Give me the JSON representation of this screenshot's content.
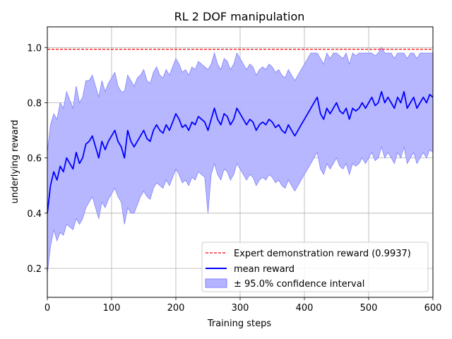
{
  "chart_data": {
    "type": "line",
    "title": "RL 2 DOF manipulation",
    "xlabel": "Training steps",
    "ylabel": "underlying reward",
    "xlim": [
      0,
      600
    ],
    "ylim": [
      0.095,
      1.075
    ],
    "xticks": [
      0,
      100,
      200,
      300,
      400,
      500,
      600
    ],
    "yticks": [
      0.2,
      0.4,
      0.6,
      0.8,
      1.0
    ],
    "ytick_labels": [
      "0.2",
      "0.4",
      "0.6",
      "0.8",
      "1.0"
    ],
    "grid": true,
    "legend_position": "lower-right",
    "colors": {
      "expert": "#ff0000",
      "mean": "#0000ff",
      "band_fill": "#b3b3ff",
      "band_edge": "#8080ff"
    },
    "expert_line": {
      "name": "Expert demonstration reward (0.9937)",
      "value": 0.9937
    },
    "series": [
      {
        "name": "mean reward",
        "x": [
          0,
          5,
          10,
          15,
          20,
          25,
          30,
          35,
          40,
          45,
          50,
          55,
          60,
          65,
          70,
          75,
          80,
          85,
          90,
          95,
          100,
          105,
          110,
          115,
          120,
          125,
          130,
          135,
          140,
          145,
          150,
          155,
          160,
          165,
          170,
          175,
          180,
          185,
          190,
          195,
          200,
          205,
          210,
          215,
          220,
          225,
          230,
          235,
          240,
          245,
          250,
          255,
          260,
          265,
          270,
          275,
          280,
          285,
          290,
          295,
          300,
          305,
          310,
          315,
          320,
          325,
          330,
          335,
          340,
          345,
          350,
          355,
          360,
          365,
          370,
          375,
          380,
          385,
          390,
          395,
          400,
          405,
          410,
          415,
          420,
          425,
          430,
          435,
          440,
          445,
          450,
          455,
          460,
          465,
          470,
          475,
          480,
          485,
          490,
          495,
          500,
          505,
          510,
          515,
          520,
          525,
          530,
          535,
          540,
          545,
          550,
          555,
          560,
          565,
          570,
          575,
          580,
          585,
          590,
          595,
          600
        ],
        "values": [
          0.4,
          0.5,
          0.55,
          0.52,
          0.57,
          0.55,
          0.6,
          0.58,
          0.56,
          0.62,
          0.58,
          0.6,
          0.65,
          0.66,
          0.68,
          0.64,
          0.6,
          0.66,
          0.63,
          0.66,
          0.68,
          0.7,
          0.66,
          0.64,
          0.6,
          0.7,
          0.66,
          0.64,
          0.66,
          0.68,
          0.7,
          0.67,
          0.66,
          0.7,
          0.72,
          0.7,
          0.69,
          0.72,
          0.7,
          0.73,
          0.76,
          0.74,
          0.71,
          0.72,
          0.7,
          0.73,
          0.72,
          0.75,
          0.74,
          0.73,
          0.7,
          0.74,
          0.78,
          0.74,
          0.72,
          0.76,
          0.75,
          0.72,
          0.74,
          0.78,
          0.76,
          0.74,
          0.72,
          0.74,
          0.73,
          0.7,
          0.72,
          0.73,
          0.72,
          0.74,
          0.73,
          0.71,
          0.72,
          0.7,
          0.69,
          0.72,
          0.7,
          0.68,
          0.7,
          0.72,
          0.74,
          0.76,
          0.78,
          0.8,
          0.82,
          0.76,
          0.74,
          0.78,
          0.76,
          0.78,
          0.8,
          0.77,
          0.76,
          0.78,
          0.74,
          0.78,
          0.77,
          0.78,
          0.8,
          0.78,
          0.8,
          0.82,
          0.79,
          0.8,
          0.84,
          0.8,
          0.82,
          0.8,
          0.78,
          0.82,
          0.8,
          0.84,
          0.78,
          0.8,
          0.82,
          0.78,
          0.8,
          0.82,
          0.8,
          0.83,
          0.82
        ]
      },
      {
        "name": "± 95.0% confidence interval",
        "x": [
          0,
          5,
          10,
          15,
          20,
          25,
          30,
          35,
          40,
          45,
          50,
          55,
          60,
          65,
          70,
          75,
          80,
          85,
          90,
          95,
          100,
          105,
          110,
          115,
          120,
          125,
          130,
          135,
          140,
          145,
          150,
          155,
          160,
          165,
          170,
          175,
          180,
          185,
          190,
          195,
          200,
          205,
          210,
          215,
          220,
          225,
          230,
          235,
          240,
          245,
          250,
          255,
          260,
          265,
          270,
          275,
          280,
          285,
          290,
          295,
          300,
          305,
          310,
          315,
          320,
          325,
          330,
          335,
          340,
          345,
          350,
          355,
          360,
          365,
          370,
          375,
          380,
          385,
          390,
          395,
          400,
          405,
          410,
          415,
          420,
          425,
          430,
          435,
          440,
          445,
          450,
          455,
          460,
          465,
          470,
          475,
          480,
          485,
          490,
          495,
          500,
          505,
          510,
          515,
          520,
          525,
          530,
          535,
          540,
          545,
          550,
          555,
          560,
          565,
          570,
          575,
          580,
          585,
          590,
          595,
          600
        ],
        "lower": [
          0.18,
          0.28,
          0.34,
          0.3,
          0.33,
          0.32,
          0.36,
          0.35,
          0.34,
          0.38,
          0.36,
          0.38,
          0.42,
          0.44,
          0.46,
          0.42,
          0.38,
          0.44,
          0.42,
          0.45,
          0.47,
          0.49,
          0.46,
          0.44,
          0.36,
          0.42,
          0.4,
          0.4,
          0.43,
          0.46,
          0.48,
          0.46,
          0.45,
          0.49,
          0.51,
          0.5,
          0.49,
          0.52,
          0.5,
          0.53,
          0.56,
          0.54,
          0.51,
          0.52,
          0.5,
          0.53,
          0.52,
          0.55,
          0.54,
          0.53,
          0.4,
          0.54,
          0.58,
          0.54,
          0.52,
          0.56,
          0.55,
          0.52,
          0.54,
          0.58,
          0.56,
          0.54,
          0.52,
          0.54,
          0.53,
          0.5,
          0.52,
          0.53,
          0.52,
          0.54,
          0.53,
          0.51,
          0.52,
          0.5,
          0.49,
          0.52,
          0.5,
          0.48,
          0.5,
          0.52,
          0.54,
          0.56,
          0.58,
          0.6,
          0.62,
          0.56,
          0.54,
          0.58,
          0.56,
          0.58,
          0.6,
          0.57,
          0.56,
          0.58,
          0.54,
          0.58,
          0.57,
          0.58,
          0.6,
          0.58,
          0.6,
          0.62,
          0.59,
          0.6,
          0.64,
          0.6,
          0.62,
          0.6,
          0.58,
          0.62,
          0.6,
          0.64,
          0.58,
          0.6,
          0.62,
          0.58,
          0.6,
          0.62,
          0.6,
          0.63,
          0.62
        ],
        "upper": [
          0.62,
          0.72,
          0.76,
          0.74,
          0.8,
          0.78,
          0.84,
          0.81,
          0.78,
          0.86,
          0.8,
          0.82,
          0.88,
          0.88,
          0.9,
          0.86,
          0.82,
          0.88,
          0.84,
          0.87,
          0.89,
          0.91,
          0.86,
          0.84,
          0.84,
          0.9,
          0.88,
          0.86,
          0.89,
          0.9,
          0.92,
          0.88,
          0.87,
          0.91,
          0.93,
          0.9,
          0.89,
          0.92,
          0.9,
          0.93,
          0.96,
          0.94,
          0.91,
          0.92,
          0.9,
          0.93,
          0.92,
          0.95,
          0.94,
          0.93,
          0.92,
          0.94,
          0.98,
          0.94,
          0.92,
          0.96,
          0.95,
          0.92,
          0.94,
          0.98,
          0.96,
          0.94,
          0.92,
          0.94,
          0.93,
          0.9,
          0.92,
          0.93,
          0.92,
          0.94,
          0.93,
          0.91,
          0.92,
          0.9,
          0.89,
          0.92,
          0.9,
          0.88,
          0.9,
          0.92,
          0.94,
          0.96,
          0.98,
          0.98,
          0.98,
          0.96,
          0.94,
          0.98,
          0.96,
          0.98,
          0.98,
          0.97,
          0.96,
          0.98,
          0.94,
          0.98,
          0.97,
          0.98,
          0.98,
          0.98,
          0.98,
          0.98,
          0.97,
          0.98,
          1.0,
          0.98,
          0.98,
          0.98,
          0.96,
          0.98,
          0.98,
          0.98,
          0.96,
          0.98,
          0.98,
          0.96,
          0.98,
          0.98,
          0.98,
          0.98,
          0.98
        ]
      }
    ]
  }
}
